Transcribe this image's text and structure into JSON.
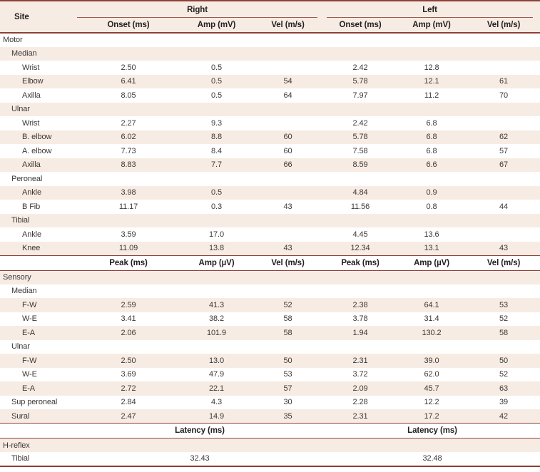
{
  "colors": {
    "row_shading": "#f7ece3",
    "header_background": "#f7ece3",
    "border_heavy": "#8e4038",
    "border_light": "#a3574e",
    "text": "#3c3836"
  },
  "table": {
    "site_header": "Site",
    "groups": [
      "Right",
      "Left"
    ],
    "sub_headers": [
      "Onset (ms)",
      "Amp (mV)",
      "Vel (m/s)",
      "Onset (ms)",
      "Amp (mV)",
      "Vel (m/s)"
    ],
    "rows": [
      {
        "type": "section",
        "label": "Motor",
        "indent": 0,
        "shaded": false,
        "cells": [
          "",
          "",
          "",
          "",
          "",
          ""
        ]
      },
      {
        "type": "section",
        "label": "Median",
        "indent": 1,
        "shaded": true,
        "cells": [
          "",
          "",
          "",
          "",
          "",
          ""
        ]
      },
      {
        "type": "data",
        "label": "Wrist",
        "indent": 2,
        "shaded": false,
        "cells": [
          "2.50",
          "0.5",
          "",
          "2.42",
          "12.8",
          ""
        ]
      },
      {
        "type": "data",
        "label": "Elbow",
        "indent": 2,
        "shaded": true,
        "cells": [
          "6.41",
          "0.5",
          "54",
          "5.78",
          "12.1",
          "61"
        ]
      },
      {
        "type": "data",
        "label": "Axilla",
        "indent": 2,
        "shaded": false,
        "cells": [
          "8.05",
          "0.5",
          "64",
          "7.97",
          "11.2",
          "70"
        ]
      },
      {
        "type": "section",
        "label": "Ulnar",
        "indent": 1,
        "shaded": true,
        "cells": [
          "",
          "",
          "",
          "",
          "",
          ""
        ]
      },
      {
        "type": "data",
        "label": "Wrist",
        "indent": 2,
        "shaded": false,
        "cells": [
          "2.27",
          "9.3",
          "",
          "2.42",
          "6.8",
          ""
        ]
      },
      {
        "type": "data",
        "label": "B. elbow",
        "indent": 2,
        "shaded": true,
        "cells": [
          "6.02",
          "8.8",
          "60",
          "5.78",
          "6.8",
          "62"
        ]
      },
      {
        "type": "data",
        "label": "A. elbow",
        "indent": 2,
        "shaded": false,
        "cells": [
          "7.73",
          "8.4",
          "60",
          "7.58",
          "6.8",
          "57"
        ]
      },
      {
        "type": "data",
        "label": "Axilla",
        "indent": 2,
        "shaded": true,
        "cells": [
          "8.83",
          "7.7",
          "66",
          "8.59",
          "6.6",
          "67"
        ]
      },
      {
        "type": "section",
        "label": "Peroneal",
        "indent": 1,
        "shaded": false,
        "cells": [
          "",
          "",
          "",
          "",
          "",
          ""
        ]
      },
      {
        "type": "data",
        "label": "Ankle",
        "indent": 2,
        "shaded": true,
        "cells": [
          "3.98",
          "0.5",
          "",
          "4.84",
          "0.9",
          ""
        ]
      },
      {
        "type": "data",
        "label": "B Fib",
        "indent": 2,
        "shaded": false,
        "cells": [
          "11.17",
          "0.3",
          "43",
          "11.56",
          "0.8",
          "44"
        ]
      },
      {
        "type": "section",
        "label": "Tibial",
        "indent": 1,
        "shaded": true,
        "cells": [
          "",
          "",
          "",
          "",
          "",
          ""
        ]
      },
      {
        "type": "data",
        "label": "Ankle",
        "indent": 2,
        "shaded": false,
        "cells": [
          "3.59",
          "17.0",
          "",
          "4.45",
          "13.6",
          ""
        ]
      },
      {
        "type": "data",
        "label": "Knee",
        "indent": 2,
        "shaded": true,
        "cells": [
          "11.09",
          "13.8",
          "43",
          "12.34",
          "13.1",
          "43"
        ]
      },
      {
        "type": "subheader",
        "cells": [
          "Peak (ms)",
          "Amp (µV)",
          "Vel (m/s)",
          "Peak (ms)",
          "Amp (µV)",
          "Vel (m/s)"
        ]
      },
      {
        "type": "section",
        "label": "Sensory",
        "indent": 0,
        "shaded": true,
        "cells": [
          "",
          "",
          "",
          "",
          "",
          ""
        ]
      },
      {
        "type": "section",
        "label": "Median",
        "indent": 1,
        "shaded": false,
        "cells": [
          "",
          "",
          "",
          "",
          "",
          ""
        ]
      },
      {
        "type": "data",
        "label": "F-W",
        "indent": 2,
        "shaded": true,
        "cells": [
          "2.59",
          "41.3",
          "52",
          "2.38",
          "64.1",
          "53"
        ]
      },
      {
        "type": "data",
        "label": "W-E",
        "indent": 2,
        "shaded": false,
        "cells": [
          "3.41",
          "38.2",
          "58",
          "3.78",
          "31.4",
          "52"
        ]
      },
      {
        "type": "data",
        "label": "E-A",
        "indent": 2,
        "shaded": true,
        "cells": [
          "2.06",
          "101.9",
          "58",
          "1.94",
          "130.2",
          "58"
        ]
      },
      {
        "type": "section",
        "label": "Ulnar",
        "indent": 1,
        "shaded": false,
        "cells": [
          "",
          "",
          "",
          "",
          "",
          ""
        ]
      },
      {
        "type": "data",
        "label": "F-W",
        "indent": 2,
        "shaded": true,
        "cells": [
          "2.50",
          "13.0",
          "50",
          "2.31",
          "39.0",
          "50"
        ]
      },
      {
        "type": "data",
        "label": "W-E",
        "indent": 2,
        "shaded": false,
        "cells": [
          "3.69",
          "47.9",
          "53",
          "3.72",
          "62.0",
          "52"
        ]
      },
      {
        "type": "data",
        "label": "E-A",
        "indent": 2,
        "shaded": true,
        "cells": [
          "2.72",
          "22.1",
          "57",
          "2.09",
          "45.7",
          "63"
        ]
      },
      {
        "type": "data",
        "label": "Sup peroneal",
        "indent": 1,
        "shaded": false,
        "cells": [
          "2.84",
          "4.3",
          "30",
          "2.28",
          "12.2",
          "39"
        ]
      },
      {
        "type": "data",
        "label": "Sural",
        "indent": 1,
        "shaded": true,
        "cells": [
          "2.47",
          "14.9",
          "35",
          "2.31",
          "17.2",
          "42"
        ]
      },
      {
        "type": "spanheader",
        "cells": [
          "Latency (ms)",
          "Latency (ms)"
        ]
      },
      {
        "type": "section",
        "label": "H-reflex",
        "indent": 0,
        "shaded": true,
        "cells": [
          "",
          "",
          "",
          "",
          "",
          ""
        ]
      },
      {
        "type": "spandata",
        "label": "Tibial",
        "indent": 1,
        "shaded": false,
        "cells": [
          "32.43",
          "32.48"
        ]
      }
    ]
  }
}
